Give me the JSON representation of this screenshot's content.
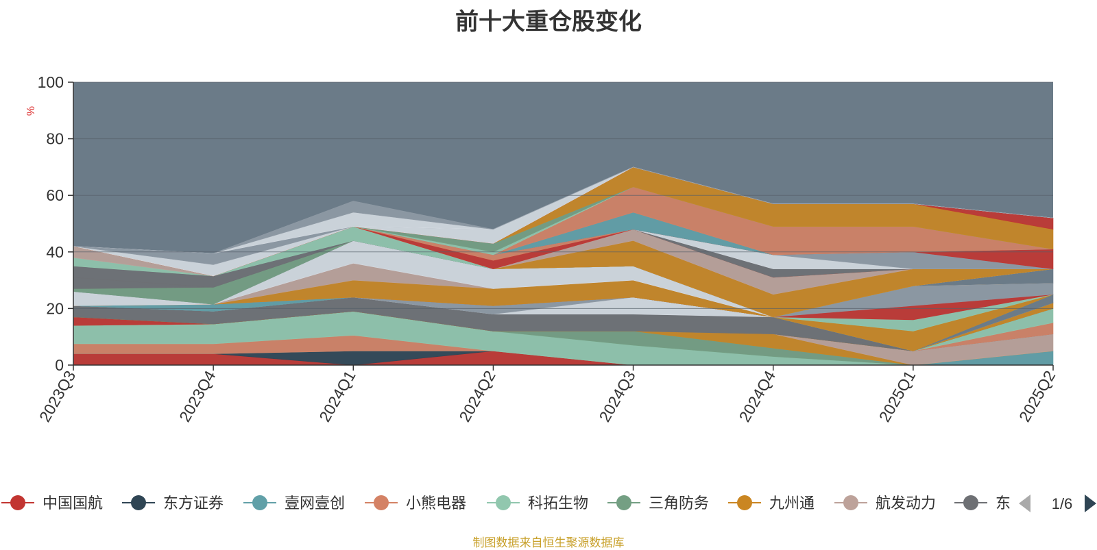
{
  "title": "前十大重仓股变化",
  "source_note": "制图数据来自恒生聚源数据库",
  "legend_page": "1/6",
  "colors": {
    "plot_background": "#6b7b88",
    "series": [
      "#c23531",
      "#2f4554",
      "#61a0a8",
      "#d48265",
      "#91c7ae",
      "#749f83",
      "#ca8622",
      "#bda29a",
      "#6e7074",
      "#546570"
    ]
  },
  "chart_data": {
    "type": "area",
    "stacked": true,
    "ylabel": "%",
    "ylim": [
      0,
      100
    ],
    "yticks": [
      0,
      20,
      40,
      60,
      80,
      100
    ],
    "categories": [
      "2023Q3",
      "2023Q4",
      "2024Q1",
      "2024Q2",
      "2024Q3",
      "2024Q4",
      "2025Q1",
      "2025Q2"
    ],
    "legend_visible": [
      "中国国航",
      "东方证券",
      "壹网壹创",
      "小熊电器",
      "科拓生物",
      "三角防务",
      "九州通",
      "航发动力",
      "东"
    ],
    "legend_placement": "bottom",
    "bands": [
      {
        "color": "#c23531",
        "values": [
          4,
          4,
          0,
          5,
          0,
          0,
          0,
          0
        ]
      },
      {
        "color": "#2f4554",
        "values": [
          0,
          0,
          5,
          0,
          0,
          0,
          0,
          0
        ]
      },
      {
        "color": "#61a0a8",
        "values": [
          0,
          0,
          0,
          0,
          0,
          0,
          0,
          5
        ]
      },
      {
        "color": "#d48265",
        "values": [
          3.5,
          3.5,
          5.5,
          0,
          0,
          0,
          0,
          0
        ]
      },
      {
        "color": "#91c7ae",
        "values": [
          6.5,
          7,
          8.5,
          7,
          7,
          3,
          0,
          0
        ]
      },
      {
        "color": "#749f83",
        "values": [
          0,
          0,
          0,
          0,
          5,
          3,
          0,
          0
        ]
      },
      {
        "color": "#ca8622",
        "values": [
          0,
          0,
          0,
          0,
          0,
          5,
          0,
          0
        ]
      },
      {
        "color": "#bda29a",
        "values": [
          0,
          0,
          0,
          0,
          0,
          0,
          5,
          6
        ]
      },
      {
        "color": "#6e7074",
        "values": [
          0,
          0,
          0,
          0,
          0,
          0,
          0,
          0
        ]
      },
      {
        "color": "#d48265",
        "values": [
          0,
          0,
          0,
          0,
          0,
          0,
          0,
          4
        ]
      },
      {
        "color": "#91c7ae",
        "values": [
          0,
          0,
          0,
          0,
          0,
          0,
          0,
          5
        ]
      },
      {
        "color": "#c23531",
        "values": [
          3,
          0,
          0,
          0,
          0,
          0,
          0,
          0
        ]
      },
      {
        "color": "#749f83",
        "values": [
          0,
          0,
          0,
          0,
          0,
          0,
          0,
          0
        ]
      },
      {
        "color": "#ca8622",
        "values": [
          0,
          0,
          0,
          0,
          0,
          0,
          0,
          2
        ]
      },
      {
        "color": "#6e7074",
        "values": [
          4,
          4.5,
          5,
          6,
          6,
          6,
          0,
          0
        ]
      },
      {
        "color": "#d5dbe2",
        "values": [
          0,
          0,
          0,
          0,
          6,
          0,
          0,
          0
        ]
      },
      {
        "color": "#8f9aa5",
        "values": [
          0,
          0,
          0,
          3,
          0,
          0,
          0,
          0
        ]
      },
      {
        "color": "#6b7b88",
        "values": [
          0,
          0,
          0,
          0,
          0,
          0,
          0,
          3
        ]
      },
      {
        "color": "#61a0a8",
        "values": [
          0,
          2.5,
          0,
          0,
          0,
          0,
          0,
          0
        ]
      },
      {
        "color": "#ca8622",
        "values": [
          0,
          0,
          0,
          0,
          0,
          0,
          7,
          0
        ]
      },
      {
        "color": "#91c7ae",
        "values": [
          0,
          0,
          0,
          0,
          0,
          0,
          4,
          0
        ]
      },
      {
        "color": "#c23531",
        "values": [
          0,
          0,
          0,
          0,
          0,
          0,
          5,
          0
        ]
      },
      {
        "color": "#8f9aa5",
        "values": [
          0,
          0,
          0,
          0,
          0,
          0,
          7,
          4
        ]
      },
      {
        "color": "#ca8622",
        "values": [
          0,
          0,
          6,
          6,
          6,
          0,
          0,
          0
        ]
      },
      {
        "color": "#bda29a",
        "values": [
          0,
          0,
          6,
          0,
          0,
          0,
          0,
          0
        ]
      },
      {
        "color": "#d5dbe2",
        "values": [
          5,
          0,
          8,
          7,
          5,
          0,
          0,
          0
        ]
      },
      {
        "color": "#6b7b88",
        "values": [
          0,
          0,
          0,
          0,
          0,
          0,
          0,
          5
        ]
      },
      {
        "color": "#749f83",
        "values": [
          1,
          6,
          0,
          0,
          0,
          0,
          0,
          0
        ]
      },
      {
        "color": "#6e7074",
        "values": [
          4,
          0,
          0,
          0,
          0,
          0,
          0,
          0
        ]
      },
      {
        "color": "#6e7074",
        "values": [
          4,
          4,
          0,
          0,
          0,
          0,
          0,
          0
        ]
      },
      {
        "color": "#91c7ae",
        "values": [
          3,
          0,
          5,
          0,
          0,
          0,
          0,
          0
        ]
      },
      {
        "color": "#bda29a",
        "values": [
          4,
          0,
          0,
          0,
          0,
          0,
          0,
          0
        ]
      },
      {
        "color": "#ca8622",
        "values": [
          0,
          0,
          0,
          0,
          9,
          8,
          6,
          0
        ]
      },
      {
        "color": "#bda29a",
        "values": [
          0,
          0,
          0,
          0,
          4,
          6,
          0,
          0
        ]
      },
      {
        "color": "#c23531",
        "values": [
          0,
          0,
          0,
          3,
          0,
          0,
          0,
          0
        ]
      },
      {
        "color": "#d48265",
        "values": [
          0,
          0,
          0,
          2,
          0,
          0,
          0,
          0
        ]
      },
      {
        "color": "#6e7074",
        "values": [
          0,
          0,
          0,
          0,
          0,
          3,
          0,
          0
        ]
      },
      {
        "color": "#d5dbe2",
        "values": [
          0,
          0,
          0,
          0,
          0,
          5,
          0,
          0
        ]
      },
      {
        "color": "#8f9aa5",
        "values": [
          0,
          0,
          0,
          0,
          0,
          0,
          6,
          0
        ]
      },
      {
        "color": "#c23531",
        "values": [
          0,
          0,
          0,
          0,
          0,
          0,
          0,
          7
        ]
      },
      {
        "color": "#61a0a8",
        "values": [
          0,
          0,
          0,
          0,
          6,
          0,
          0,
          0
        ]
      },
      {
        "color": "#d48265",
        "values": [
          0,
          0,
          0,
          0,
          9,
          10,
          9,
          0
        ]
      },
      {
        "color": "#91c7ae",
        "values": [
          0,
          0,
          0,
          1,
          0,
          0,
          0,
          0
        ]
      },
      {
        "color": "#749f83",
        "values": [
          0,
          0,
          0,
          3,
          0,
          0,
          0,
          0
        ]
      },
      {
        "color": "#ca8622",
        "values": [
          0,
          0,
          0,
          0,
          7,
          8,
          8,
          7
        ]
      },
      {
        "color": "#c23531",
        "values": [
          0,
          0,
          0,
          0,
          0,
          0,
          0,
          4
        ]
      },
      {
        "color": "#d5dbe2",
        "values": [
          0,
          4,
          0,
          5,
          0,
          0,
          0,
          0
        ]
      },
      {
        "color": "#8f9aa5",
        "values": [
          0,
          4,
          0,
          0,
          0,
          0,
          0,
          0
        ]
      },
      {
        "color": "#d5dbe2",
        "values": [
          0,
          0,
          5,
          0,
          0,
          0,
          0,
          0
        ]
      },
      {
        "color": "#8f9aa5",
        "values": [
          0,
          0,
          4,
          0,
          0,
          0,
          0,
          0
        ]
      }
    ]
  }
}
